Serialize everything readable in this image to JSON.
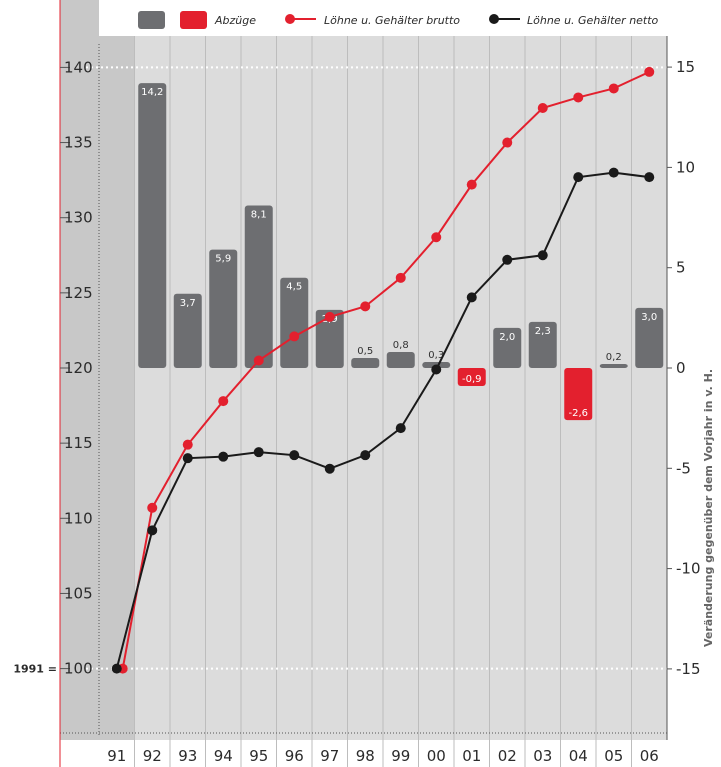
{
  "chart_data": {
    "type": "bar+line",
    "categories": [
      "91",
      "92",
      "93",
      "94",
      "95",
      "96",
      "97",
      "98",
      "99",
      "00",
      "01",
      "02",
      "03",
      "04",
      "05",
      "06"
    ],
    "bar_series": {
      "name": "",
      "name_negative": "Abzüge",
      "axis": "right",
      "values": [
        null,
        14.2,
        3.7,
        5.9,
        8.1,
        4.5,
        2.9,
        0.5,
        0.8,
        0.3,
        -0.9,
        2.0,
        2.3,
        -2.6,
        0.2,
        3.0
      ],
      "labels": [
        "",
        "14,2",
        "3,7",
        "5,9",
        "8,1",
        "4,5",
        "2,9",
        "0,5",
        "0,8",
        "0,3",
        "-0,9",
        "2,0",
        "2,3",
        "-2,6",
        "0,2",
        "3,0"
      ],
      "color_positive": "#6d6e71",
      "color_negative": "#e3202e"
    },
    "line_series": [
      {
        "name": "Löhne u. Gehälter brutto",
        "axis": "left",
        "color": "#e3202e",
        "values": [
          100,
          110.7,
          114.9,
          117.8,
          120.5,
          122.1,
          123.4,
          124.1,
          126.0,
          128.7,
          132.2,
          135.0,
          137.3,
          138.0,
          138.6,
          139.7
        ]
      },
      {
        "name": "Löhne u. Gehälter netto",
        "axis": "left",
        "color": "#1a1a1a",
        "values": [
          100,
          109.2,
          114.0,
          114.1,
          114.4,
          114.2,
          113.3,
          114.2,
          116.0,
          119.9,
          124.7,
          127.2,
          127.5,
          132.7,
          133.0,
          132.7
        ]
      }
    ],
    "left_axis": {
      "ylim": [
        94,
        141
      ],
      "ticks": [
        "100",
        "105",
        "110",
        "115",
        "120",
        "125",
        "130",
        "135",
        "140"
      ],
      "base_label": "1991 ="
    },
    "right_axis": {
      "ylim": [
        -20.5,
        15.9
      ],
      "ticks": [
        "-15",
        "-10",
        "-5",
        "0",
        "5",
        "10",
        "15"
      ],
      "label": "Veränderung gegenüber dem Vorjahr in v. H."
    },
    "legend": [
      {
        "kind": "bar",
        "color": "#6d6e71",
        "label": ""
      },
      {
        "kind": "bar",
        "color": "#e3202e",
        "label": "Abzüge"
      },
      {
        "kind": "line",
        "color": "#e3202e",
        "label": "Löhne u. Gehälter brutto"
      },
      {
        "kind": "line",
        "color": "#1a1a1a",
        "label": "Löhne u. Gehälter netto"
      }
    ],
    "legend_position": "top",
    "grid": "dotted reference lines at 100 and 140",
    "colors": {
      "panel_bg": "#dcdcdc",
      "panel_first": "#c8c8c8",
      "divider": "#bdbdbd",
      "accent_red": "#e3202e",
      "bar_grey": "#6d6e71"
    }
  }
}
